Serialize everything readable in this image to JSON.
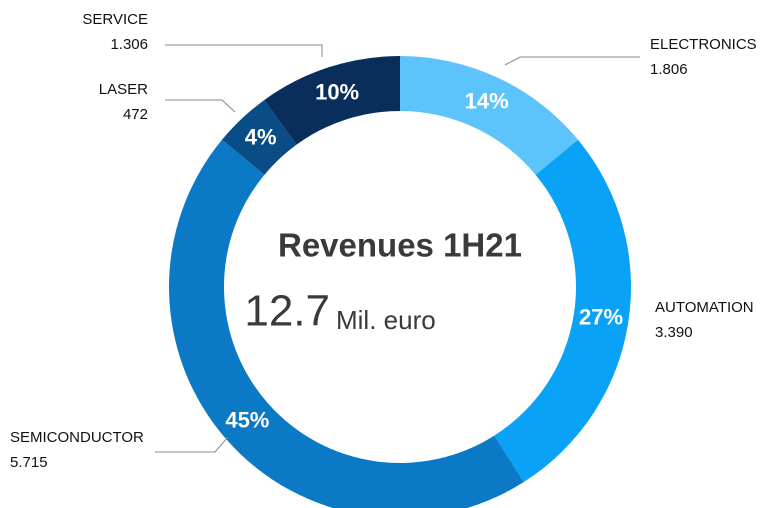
{
  "chart_data": {
    "type": "pie",
    "donut": true,
    "categories": [
      "ELECTRONICS",
      "AUTOMATION",
      "SEMICONDUCTOR",
      "LASER",
      "SERVICE"
    ],
    "values": [
      14,
      27,
      45,
      4,
      10
    ],
    "value_labels": [
      "14%",
      "27%",
      "45%",
      "4%",
      "10%"
    ],
    "colors": [
      "#5cc3fb",
      "#0aa2f6",
      "#0b79c6",
      "#0a4d86",
      "#0a2e5c"
    ],
    "amounts": [
      1806,
      3390,
      5715,
      472,
      1306
    ],
    "amount_labels": [
      "1.806",
      "3.390",
      "5.715",
      "472",
      "1.306"
    ],
    "center_title": "Revenues 1H21",
    "center_value": 12.7,
    "center_unit": "Mil. euro"
  }
}
